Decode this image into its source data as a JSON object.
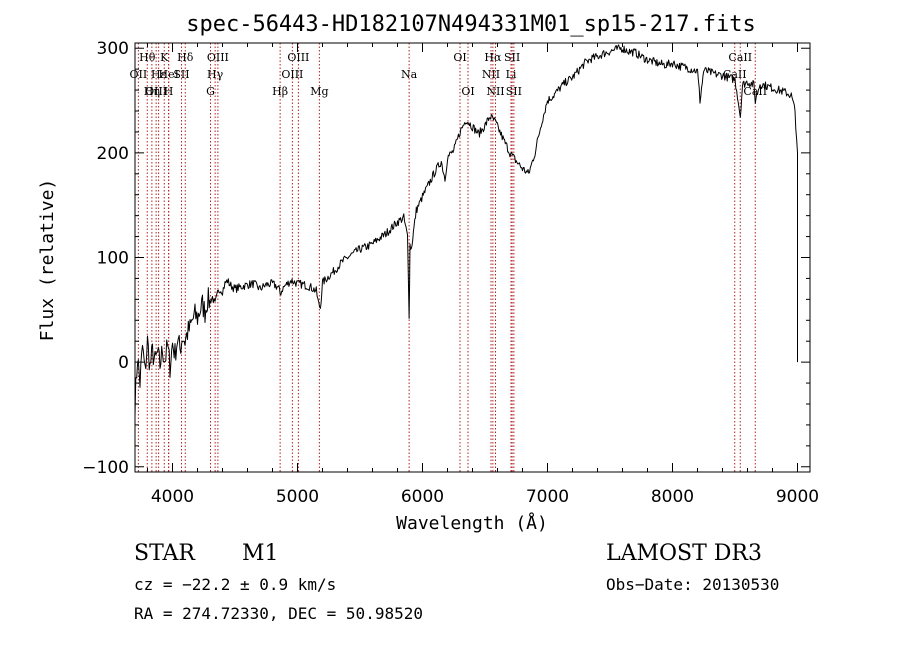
{
  "chart_data": {
    "type": "line",
    "title": "spec-56443-HD182107N494331M01_sp15-217.fits",
    "xlabel": "Wavelength (Å)",
    "ylabel": "Flux (relative)",
    "xlim": [
      3700,
      9100
    ],
    "ylim": [
      -105,
      305
    ],
    "xticks": [
      4000,
      5000,
      6000,
      7000,
      8000,
      9000
    ],
    "yticks": [
      -100,
      0,
      100,
      200,
      300
    ],
    "series": [
      {
        "name": "flux",
        "x": [
          3700,
          3720,
          3740,
          3760,
          3780,
          3800,
          3820,
          3840,
          3860,
          3880,
          3900,
          3920,
          3940,
          3960,
          3980,
          4000,
          4020,
          4040,
          4060,
          4080,
          4100,
          4120,
          4140,
          4160,
          4180,
          4200,
          4220,
          4240,
          4260,
          4280,
          4300,
          4320,
          4340,
          4360,
          4380,
          4400,
          4420,
          4440,
          4460,
          4480,
          4500,
          4550,
          4600,
          4650,
          4700,
          4750,
          4800,
          4850,
          4861,
          4880,
          4900,
          4950,
          5000,
          5050,
          5100,
          5150,
          5170,
          5183,
          5200,
          5250,
          5300,
          5350,
          5400,
          5450,
          5500,
          5550,
          5600,
          5650,
          5700,
          5750,
          5800,
          5850,
          5880,
          5893,
          5900,
          5910,
          5950,
          6000,
          6050,
          6100,
          6150,
          6180,
          6200,
          6250,
          6300,
          6350,
          6400,
          6450,
          6500,
          6540,
          6563,
          6580,
          6600,
          6650,
          6700,
          6750,
          6800,
          6850,
          6900,
          6950,
          7000,
          7050,
          7100,
          7150,
          7200,
          7250,
          7300,
          7350,
          7400,
          7450,
          7500,
          7550,
          7600,
          7650,
          7700,
          7750,
          7800,
          7850,
          7900,
          7950,
          8000,
          8050,
          8100,
          8150,
          8200,
          8220,
          8250,
          8300,
          8350,
          8400,
          8450,
          8500,
          8520,
          8542,
          8560,
          8600,
          8650,
          8662,
          8700,
          8750,
          8800,
          8850,
          8900,
          8950,
          8980,
          9000
        ],
        "y": [
          -40,
          5,
          -20,
          15,
          -10,
          20,
          -5,
          10,
          0,
          8,
          -3,
          12,
          2,
          15,
          -4,
          18,
          8,
          22,
          12,
          25,
          20,
          28,
          32,
          40,
          45,
          42,
          50,
          55,
          48,
          60,
          58,
          62,
          55,
          65,
          70,
          68,
          75,
          78,
          74,
          72,
          70,
          72,
          74,
          75,
          70,
          74,
          75,
          71,
          65,
          70,
          73,
          78,
          75,
          74,
          72,
          68,
          55,
          52,
          76,
          82,
          88,
          95,
          100,
          104,
          108,
          110,
          113,
          118,
          122,
          128,
          134,
          138,
          120,
          45,
          112,
          108,
          145,
          158,
          170,
          182,
          192,
          175,
          196,
          202,
          220,
          232,
          225,
          218,
          226,
          235,
          232,
          230,
          225,
          212,
          200,
          192,
          185,
          180,
          200,
          228,
          250,
          255,
          262,
          268,
          272,
          279,
          286,
          290,
          292,
          295,
          297,
          299,
          300,
          297,
          296,
          292,
          289,
          287,
          285,
          284,
          286,
          283,
          282,
          280,
          278,
          250,
          279,
          277,
          275,
          274,
          272,
          270,
          255,
          235,
          265,
          268,
          265,
          250,
          266,
          264,
          262,
          260,
          258,
          255,
          240,
          200
        ]
      }
    ],
    "spectral_lines": [
      {
        "label": "Hθ",
        "row": 1,
        "wavelength": 3798
      },
      {
        "label": "K",
        "row": 1,
        "wavelength": 3934
      },
      {
        "label": "Hδ",
        "row": 1,
        "wavelength": 4102
      },
      {
        "label": "OIII",
        "row": 1,
        "wavelength": 4363
      },
      {
        "label": "OIII",
        "row": 1,
        "wavelength": 5007
      },
      {
        "label": "OI",
        "row": 1,
        "wavelength": 6300
      },
      {
        "label": "Hα",
        "row": 1,
        "wavelength": 6563
      },
      {
        "label": "SII",
        "row": 1,
        "wavelength": 6717
      },
      {
        "label": "CaII",
        "row": 1,
        "wavelength": 8542
      },
      {
        "label": "OII",
        "row": 2,
        "wavelength": 3727
      },
      {
        "label": "Hε",
        "row": 2,
        "wavelength": 3889
      },
      {
        "label": "HeI",
        "row": 2,
        "wavelength": 3970
      },
      {
        "label": "SII",
        "row": 2,
        "wavelength": 4072
      },
      {
        "label": "Hγ",
        "row": 2,
        "wavelength": 4341
      },
      {
        "label": "OIII",
        "row": 2,
        "wavelength": 4959
      },
      {
        "label": "Na",
        "row": 2,
        "wavelength": 5893
      },
      {
        "label": "NII",
        "row": 2,
        "wavelength": 6548
      },
      {
        "label": "Li",
        "row": 2,
        "wavelength": 6708
      },
      {
        "label": "CaII",
        "row": 2,
        "wavelength": 8498
      },
      {
        "label": "OIII",
        "row": 3,
        "wavelength": 3869
      },
      {
        "label": "Hη",
        "row": 3,
        "wavelength": 3835
      },
      {
        "label": "H",
        "row": 3,
        "wavelength": 3968
      },
      {
        "label": "G",
        "row": 3,
        "wavelength": 4304
      },
      {
        "label": "Hβ",
        "row": 3,
        "wavelength": 4861
      },
      {
        "label": "Mg",
        "row": 3,
        "wavelength": 5175
      },
      {
        "label": "OI",
        "row": 3,
        "wavelength": 6364
      },
      {
        "label": "NII",
        "row": 3,
        "wavelength": 6584
      },
      {
        "label": "SII",
        "row": 3,
        "wavelength": 6731
      },
      {
        "label": "CaII",
        "row": 3,
        "wavelength": 8662
      }
    ]
  },
  "info": {
    "object_class": "STAR",
    "subclass": "M1",
    "survey": "LAMOST DR3",
    "redshift": "cz = −22.2 ± 0.9 km/s",
    "obs_date": "Obs−Date: 20130530",
    "coordinates": "RA = 274.72330, DEC =  50.98520"
  },
  "colors": {
    "line": "#000000",
    "marker_lines": "#b22222"
  }
}
